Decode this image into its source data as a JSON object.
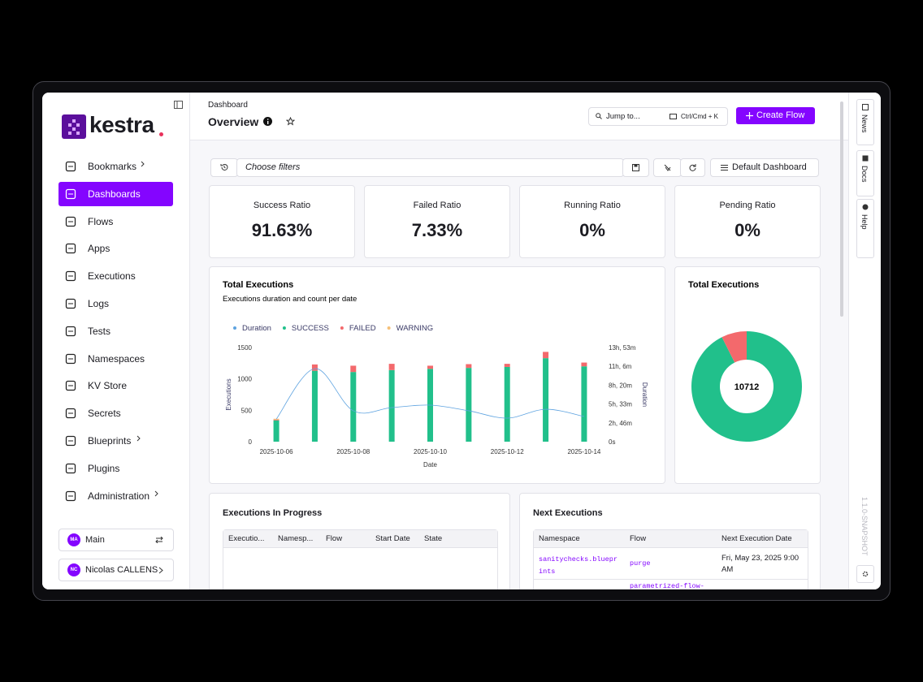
{
  "app": {
    "logo": "kestra",
    "nav": [
      "Bookmarks",
      "Dashboards",
      "Flows",
      "Apps",
      "Executions",
      "Logs",
      "Tests",
      "Namespaces",
      "KV Store",
      "Secrets",
      "Blueprints",
      "Plugins",
      "Administration"
    ],
    "tenant": {
      "initials": "MA",
      "name": "Main"
    },
    "user": {
      "initials": "NC",
      "name": "Nicolas CALLENS"
    }
  },
  "header": {
    "breadcrumb": "Dashboard",
    "title": "Overview",
    "search": "Jump to...",
    "shortcut": "Ctrl/Cmd + K",
    "create": "Create Flow"
  },
  "filters": {
    "placeholder": "Choose filters",
    "dashboard": "Default Dashboard"
  },
  "kpis": [
    {
      "label": "Success Ratio",
      "value": "91.63%"
    },
    {
      "label": "Failed Ratio",
      "value": "7.33%"
    },
    {
      "label": "Running Ratio",
      "value": "0%"
    },
    {
      "label": "Pending Ratio",
      "value": "0%"
    }
  ],
  "chart_data": [
    {
      "type": "bar",
      "stacked": true,
      "title": "Total Executions",
      "subtitle": "Executions duration and count per date",
      "x_label": "Date",
      "y_label": "Executions",
      "y2_label": "Duration",
      "grid": false,
      "legend": "top-left",
      "categories": [
        "2025-10-06",
        null,
        "2025-10-08",
        null,
        "2025-10-10",
        null,
        "2025-10-12",
        null,
        "2025-10-14"
      ],
      "series": [
        {
          "name": "Duration",
          "color": "#5ea3e0",
          "axis": "y2",
          "values": [
            12000,
            38800,
            16400,
            18100,
            19400,
            16400,
            12500,
            17200,
            13400
          ]
        },
        {
          "name": "SUCCESS",
          "color": "#21c08b",
          "values": [
            340,
            1130,
            1110,
            1140,
            1160,
            1175,
            1190,
            1330,
            1200
          ]
        },
        {
          "name": "FAILED",
          "color": "#f3696c",
          "values": [
            10,
            100,
            100,
            100,
            50,
            60,
            50,
            100,
            60
          ]
        },
        {
          "name": "WARNING",
          "color": "#f5c078",
          "values": [
            15,
            0,
            0,
            0,
            0,
            0,
            0,
            0,
            0
          ]
        }
      ],
      "ylim": [
        0,
        1500
      ],
      "yticks": [
        0,
        500,
        1000,
        1500
      ],
      "y2lim": [
        0,
        50000
      ],
      "y2ticks": [
        {
          "value": 0,
          "label": "0s"
        },
        {
          "value": 10000,
          "label": "2h, 46m"
        },
        {
          "value": 20000,
          "label": "5h, 33m"
        },
        {
          "value": 30000,
          "label": "8h, 20m"
        },
        {
          "value": 40000,
          "label": "11h, 6m"
        },
        {
          "value": 50000,
          "label": "13h, 53m"
        }
      ]
    },
    {
      "type": "pie",
      "donut": true,
      "title": "Total Executions",
      "total": 10712,
      "values": [
        9816,
        785
      ],
      "colors": [
        "#21c08b",
        "#f3696c"
      ]
    }
  ],
  "tables": {
    "in_progress": {
      "title": "Executions In Progress",
      "columns": [
        "Executio...",
        "Namesp...",
        "Flow",
        "Start Date",
        "State"
      ]
    },
    "next": {
      "title": "Next Executions",
      "columns": [
        "Namespace",
        "Flow",
        "Next Execution Date"
      ],
      "rows": [
        {
          "namespace": "sanitychecks.blueprints",
          "flow": "purge",
          "date": "Fri, May 23, 2025 9:00 AM"
        },
        {
          "flow": "parametrized-flow-"
        }
      ]
    }
  },
  "rail": {
    "items": [
      "News",
      "Docs",
      "Help"
    ],
    "version": "1.1.0-SNAPSHOT"
  }
}
